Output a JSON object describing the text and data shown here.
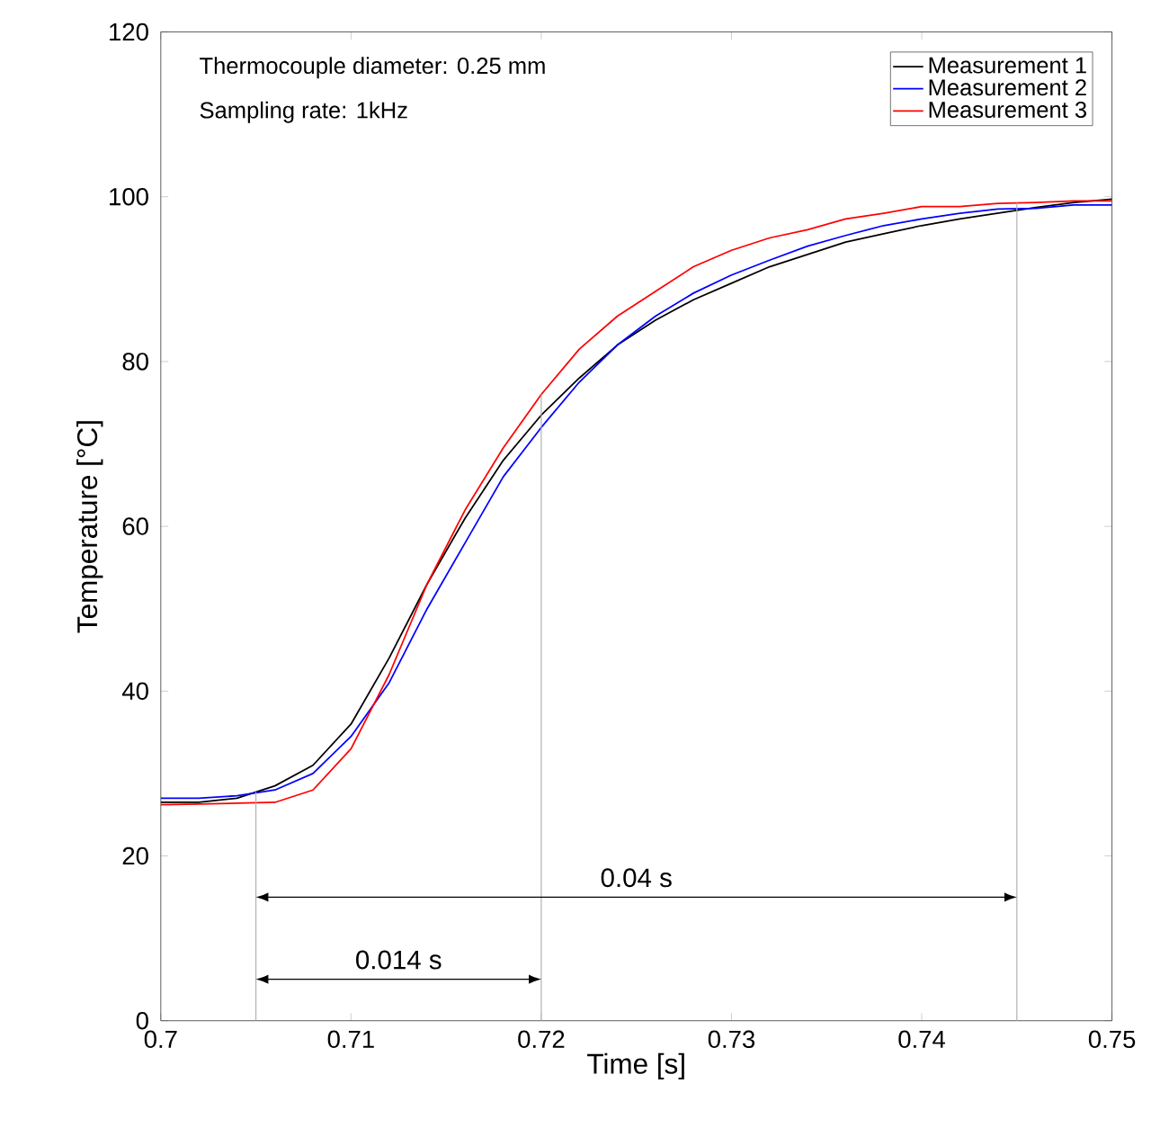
{
  "chart_data": {
    "type": "line",
    "xlabel": "Time [s]",
    "ylabel": "Temperature [°C]",
    "xlim": [
      0.7,
      0.75
    ],
    "ylim": [
      0,
      120
    ],
    "xticks": [
      0.7,
      0.71,
      0.72,
      0.73,
      0.74,
      0.75
    ],
    "yticks": [
      0,
      20,
      40,
      60,
      80,
      100,
      120
    ],
    "legend": "top right",
    "grid": false,
    "marker": "none",
    "line_style": "solid",
    "annotations": [
      "Thermocouple diameter: 0.25 mm",
      "Sampling rate: 1kHz",
      "0.04 s",
      "0.014 s"
    ],
    "ref_lines": [
      {
        "axis": "x",
        "value": 0.705,
        "color": "#b0b0b0"
      },
      {
        "axis": "x",
        "value": 0.72,
        "color": "#b0b0b0"
      },
      {
        "axis": "x",
        "value": 0.745,
        "color": "#b0b0b0"
      }
    ],
    "x": [
      0.7,
      0.702,
      0.704,
      0.706,
      0.708,
      0.71,
      0.712,
      0.714,
      0.716,
      0.718,
      0.72,
      0.722,
      0.724,
      0.726,
      0.728,
      0.73,
      0.732,
      0.734,
      0.736,
      0.738,
      0.74,
      0.742,
      0.744,
      0.746,
      0.748,
      0.75
    ],
    "series": [
      {
        "name": "Measurement 1",
        "color": "#000000",
        "values": [
          26.5,
          26.5,
          27,
          28.5,
          31,
          36,
          44,
          53,
          61,
          68,
          73.5,
          78,
          82,
          85,
          87.5,
          89.5,
          91.5,
          93,
          94.5,
          95.5,
          96.5,
          97.3,
          98,
          98.7,
          99.3,
          99.7
        ]
      },
      {
        "name": "Measurement 2",
        "color": "#0000ff",
        "values": [
          27,
          27,
          27.3,
          28,
          30,
          34.5,
          41,
          50,
          58,
          66,
          72,
          77.5,
          82,
          85.5,
          88.3,
          90.5,
          92.3,
          94,
          95.3,
          96.5,
          97.3,
          98,
          98.5,
          98.6,
          99,
          99
        ]
      },
      {
        "name": "Measurement 3",
        "color": "#ff0000",
        "values": [
          26.2,
          26.3,
          26.4,
          26.5,
          28,
          33,
          42,
          53,
          62,
          69.5,
          76,
          81.5,
          85.5,
          88.5,
          91.5,
          93.5,
          95,
          96,
          97.3,
          98,
          98.8,
          98.8,
          99.2,
          99.3,
          99.5,
          99.5
        ]
      }
    ]
  }
}
